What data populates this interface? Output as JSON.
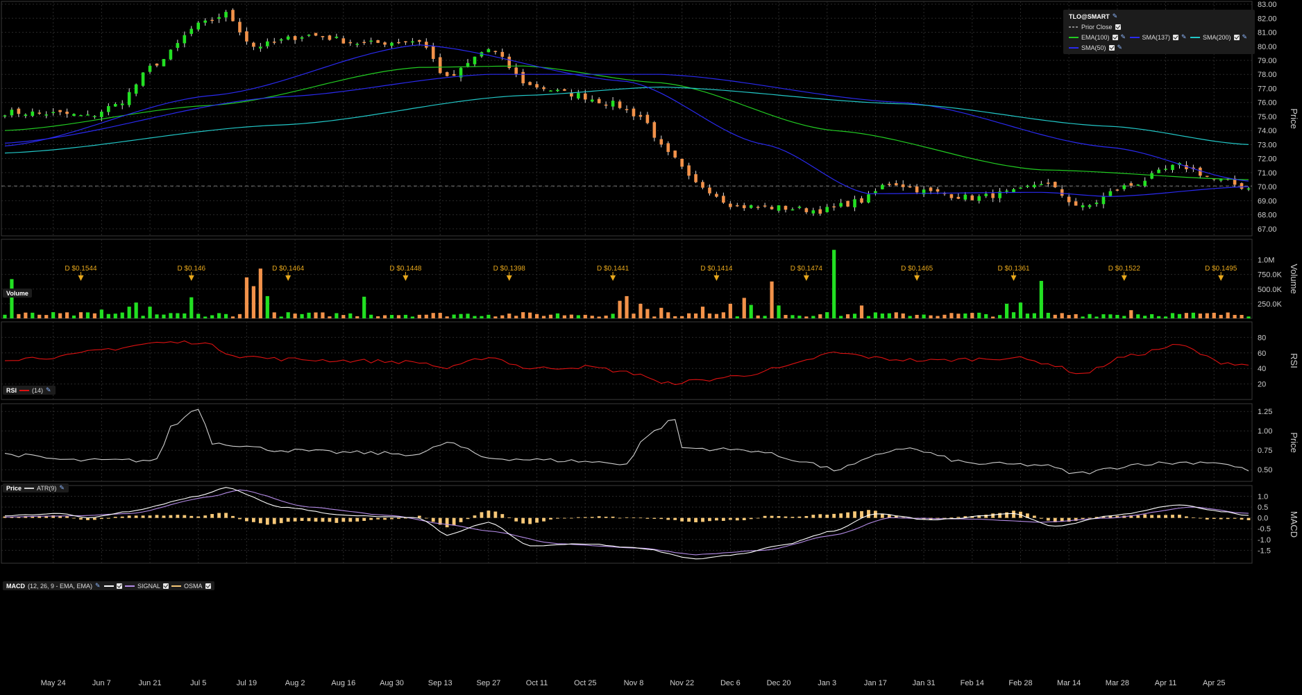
{
  "symbol": "TLO@SMART",
  "price_axis_title": "Price",
  "legend": {
    "prior_close": "Prior Close",
    "ema100": "EMA(100)",
    "sma137": "SMA(137)",
    "sma200": "SMA(200)",
    "sma50": "SMA(50)"
  },
  "panels": {
    "volume": {
      "title": "Volume",
      "axis_title": "Volume"
    },
    "rsi": {
      "title": "RSI",
      "params": "(14)",
      "axis_title": "RSI"
    },
    "atr": {
      "title": "Price",
      "params": "ATR(9)",
      "axis_title": "Price"
    },
    "macd": {
      "title": "MACD",
      "params": "(12, 26, 9 - EMA, EMA)",
      "signal": "SIGNAL",
      "osma": "OSMA",
      "axis_title": "MACD"
    }
  },
  "colors": {
    "up": "#22e022",
    "down": "#f2924a",
    "ema100": "#22cc22",
    "sma137": "#2a2af0",
    "sma200": "#22c8c8",
    "sma50": "#2a2af0",
    "rsi": "#dd1111",
    "atr": "#cfcfcf",
    "macd": "#ffffff",
    "signal": "#b58ce8",
    "osma": "#f7c878",
    "dividend": "#e8a81c"
  },
  "chart_data": [
    {
      "type": "candlestick",
      "title": "TLO@SMART",
      "ylabel": "Price",
      "ylim": [
        66.5,
        83.2
      ],
      "y_ticks": [
        "67.00",
        "68.00",
        "69.00",
        "70.00",
        "71.00",
        "72.00",
        "73.00",
        "74.00",
        "75.00",
        "76.00",
        "77.00",
        "78.00",
        "79.00",
        "80.00",
        "81.00",
        "82.00",
        "83.00"
      ],
      "x_ticks": [
        "May 24",
        "Jun 7",
        "Jun 21",
        "Jul 5",
        "Jul 19",
        "Aug 2",
        "Aug 16",
        "Aug 30",
        "Sep 13",
        "Sep 27",
        "Oct 11",
        "Oct 25",
        "Nov 8",
        "Nov 22",
        "Dec 6",
        "Dec 20",
        "Jan 3",
        "Jan 17",
        "Jan 31",
        "Feb 14",
        "Feb 28",
        "Mar 14",
        "Mar 28",
        "Apr 11",
        "Apr 25"
      ],
      "prior_close": 70.05,
      "close_anchors": [
        [
          0,
          75.3
        ],
        [
          8,
          75.2
        ],
        [
          12,
          75.0
        ],
        [
          16,
          75.8
        ],
        [
          22,
          78.8
        ],
        [
          28,
          81.5
        ],
        [
          32,
          82.3
        ],
        [
          36,
          80.0
        ],
        [
          44,
          80.8
        ],
        [
          52,
          80.2
        ],
        [
          60,
          80.4
        ],
        [
          64,
          77.7
        ],
        [
          70,
          79.8
        ],
        [
          76,
          77.2
        ],
        [
          82,
          76.6
        ],
        [
          88,
          75.9
        ],
        [
          92,
          75.0
        ],
        [
          96,
          72.3
        ],
        [
          100,
          70.2
        ],
        [
          106,
          68.6
        ],
        [
          112,
          68.5
        ],
        [
          118,
          68.3
        ],
        [
          124,
          69.0
        ],
        [
          128,
          70.3
        ],
        [
          134,
          69.6
        ],
        [
          140,
          69.2
        ],
        [
          146,
          69.6
        ],
        [
          150,
          70.3
        ],
        [
          156,
          68.5
        ],
        [
          162,
          70.0
        ],
        [
          170,
          71.5
        ],
        [
          176,
          70.4
        ],
        [
          180,
          69.9
        ]
      ],
      "moving_averages": [
        {
          "name": "EMA(100)",
          "anchors": [
            [
              0,
              74.0
            ],
            [
              30,
              75.8
            ],
            [
              60,
              78.5
            ],
            [
              75,
              78.6
            ],
            [
              95,
              77.4
            ],
            [
              120,
              74.0
            ],
            [
              150,
              71.2
            ],
            [
              180,
              70.5
            ]
          ]
        },
        {
          "name": "SMA(137)",
          "anchors": [
            [
              0,
              73.1
            ],
            [
              40,
              76.4
            ],
            [
              70,
              78.0
            ],
            [
              95,
              78.0
            ],
            [
              130,
              76.0
            ],
            [
              160,
              72.8
            ],
            [
              180,
              70.4
            ]
          ]
        },
        {
          "name": "SMA(200)",
          "anchors": [
            [
              0,
              72.4
            ],
            [
              40,
              74.4
            ],
            [
              75,
              76.5
            ],
            [
              95,
              77.1
            ],
            [
              130,
              75.9
            ],
            [
              160,
              74.3
            ],
            [
              180,
              73.0
            ]
          ]
        },
        {
          "name": "SMA(50)",
          "anchors": [
            [
              0,
              72.9
            ],
            [
              30,
              76.5
            ],
            [
              60,
              80.1
            ],
            [
              90,
              77.5
            ],
            [
              110,
              73.0
            ],
            [
              125,
              69.5
            ],
            [
              150,
              69.6
            ],
            [
              160,
              69.3
            ],
            [
              180,
              70.0
            ]
          ]
        }
      ],
      "dividends": [
        {
          "label": "D $0.1544",
          "bar": 11
        },
        {
          "label": "D $0.146",
          "bar": 27
        },
        {
          "label": "D $0.1464",
          "bar": 41
        },
        {
          "label": "D $0.1448",
          "bar": 58
        },
        {
          "label": "D $0.1398",
          "bar": 73
        },
        {
          "label": "D $0.1441",
          "bar": 88
        },
        {
          "label": "D $0.1414",
          "bar": 103
        },
        {
          "label": "D $0.1474",
          "bar": 116
        },
        {
          "label": "D $0.1465",
          "bar": 132
        },
        {
          "label": "D $0.1361",
          "bar": 146
        },
        {
          "label": "D $0.1522",
          "bar": 162
        },
        {
          "label": "D $0.1495",
          "bar": 176
        }
      ]
    },
    {
      "type": "bar",
      "title": "Volume",
      "ylabel": "Volume",
      "ylim": [
        0,
        1.35
      ],
      "y_ticks": [
        "250.0K",
        "500.0K",
        "750.0K",
        "1.0M"
      ],
      "base_level": 0.06,
      "spikes": [
        [
          1,
          0.67
        ],
        [
          14,
          0.15
        ],
        [
          18,
          0.2
        ],
        [
          19,
          0.27
        ],
        [
          21,
          0.2
        ],
        [
          27,
          0.36
        ],
        [
          35,
          0.7
        ],
        [
          36,
          0.55
        ],
        [
          37,
          0.85
        ],
        [
          38,
          0.38
        ],
        [
          52,
          0.37
        ],
        [
          89,
          0.3
        ],
        [
          90,
          0.38
        ],
        [
          92,
          0.25
        ],
        [
          93,
          0.16
        ],
        [
          95,
          0.18
        ],
        [
          101,
          0.2
        ],
        [
          105,
          0.25
        ],
        [
          107,
          0.35
        ],
        [
          108,
          0.23
        ],
        [
          111,
          0.63
        ],
        [
          112,
          0.22
        ],
        [
          120,
          1.17
        ],
        [
          124,
          0.22
        ],
        [
          145,
          0.25
        ],
        [
          147,
          0.27
        ],
        [
          150,
          0.64
        ],
        [
          163,
          0.14
        ]
      ]
    },
    {
      "type": "line",
      "title": "RSI",
      "series": [
        {
          "name": "RSI (14)",
          "anchors": [
            [
              0,
              52
            ],
            [
              8,
              55
            ],
            [
              15,
              65
            ],
            [
              22,
              73
            ],
            [
              28,
              74
            ],
            [
              34,
              56
            ],
            [
              40,
              52
            ],
            [
              50,
              50
            ],
            [
              60,
              48
            ],
            [
              64,
              40
            ],
            [
              70,
              55
            ],
            [
              76,
              40
            ],
            [
              84,
              42
            ],
            [
              92,
              33
            ],
            [
              95,
              20
            ],
            [
              100,
              24
            ],
            [
              106,
              30
            ],
            [
              112,
              40
            ],
            [
              120,
              60
            ],
            [
              128,
              52
            ],
            [
              134,
              50
            ],
            [
              140,
              52
            ],
            [
              146,
              54
            ],
            [
              150,
              48
            ],
            [
              156,
              33
            ],
            [
              162,
              55
            ],
            [
              170,
              70
            ],
            [
              176,
              48
            ],
            [
              180,
              45
            ]
          ]
        }
      ],
      "ylabel": "RSI",
      "ylim": [
        0,
        100
      ],
      "y_ticks": [
        "20",
        "40",
        "60",
        "80"
      ]
    },
    {
      "type": "line",
      "title": "ATR",
      "series": [
        {
          "name": "ATR(9)",
          "anchors": [
            [
              0,
              0.7
            ],
            [
              10,
              0.62
            ],
            [
              22,
              0.62
            ],
            [
              24,
              1.05
            ],
            [
              28,
              1.3
            ],
            [
              30,
              0.85
            ],
            [
              40,
              0.75
            ],
            [
              50,
              0.72
            ],
            [
              60,
              0.7
            ],
            [
              64,
              0.85
            ],
            [
              70,
              0.65
            ],
            [
              80,
              0.62
            ],
            [
              90,
              0.58
            ],
            [
              93,
              0.95
            ],
            [
              97,
              1.15
            ],
            [
              98,
              0.78
            ],
            [
              108,
              0.75
            ],
            [
              115,
              0.62
            ],
            [
              120,
              0.5
            ],
            [
              130,
              0.78
            ],
            [
              140,
              0.58
            ],
            [
              150,
              0.56
            ],
            [
              155,
              0.45
            ],
            [
              165,
              0.58
            ],
            [
              175,
              0.6
            ],
            [
              180,
              0.5
            ]
          ]
        }
      ],
      "ylabel": "Price",
      "ylim": [
        0.35,
        1.35
      ],
      "y_ticks": [
        "0.50",
        "0.75",
        "1.00",
        "1.25"
      ]
    },
    {
      "type": "line",
      "title": "MACD",
      "series": [
        {
          "name": "MACD",
          "anchors": [
            [
              0,
              0.1
            ],
            [
              8,
              0.2
            ],
            [
              12,
              0.0
            ],
            [
              18,
              0.3
            ],
            [
              28,
              1.0
            ],
            [
              32,
              1.4
            ],
            [
              40,
              0.5
            ],
            [
              50,
              0.1
            ],
            [
              60,
              0.0
            ],
            [
              64,
              -0.8
            ],
            [
              70,
              -0.2
            ],
            [
              76,
              -1.3
            ],
            [
              84,
              -1.2
            ],
            [
              92,
              -1.4
            ],
            [
              100,
              -1.9
            ],
            [
              106,
              -1.7
            ],
            [
              112,
              -1.3
            ],
            [
              120,
              -0.6
            ],
            [
              126,
              0.2
            ],
            [
              134,
              -0.1
            ],
            [
              146,
              0.2
            ],
            [
              152,
              -0.4
            ],
            [
              160,
              0.1
            ],
            [
              170,
              0.6
            ],
            [
              176,
              0.3
            ],
            [
              180,
              0.1
            ]
          ]
        },
        {
          "name": "SIGNAL",
          "anchors": [
            [
              0,
              0.05
            ],
            [
              10,
              0.1
            ],
            [
              18,
              0.2
            ],
            [
              30,
              1.0
            ],
            [
              34,
              1.3
            ],
            [
              44,
              0.5
            ],
            [
              56,
              0.1
            ],
            [
              64,
              -0.3
            ],
            [
              70,
              -0.6
            ],
            [
              80,
              -1.2
            ],
            [
              92,
              -1.4
            ],
            [
              100,
              -1.7
            ],
            [
              110,
              -1.5
            ],
            [
              120,
              -0.8
            ],
            [
              128,
              0.0
            ],
            [
              140,
              -0.05
            ],
            [
              150,
              -0.2
            ],
            [
              160,
              0.0
            ],
            [
              172,
              0.5
            ],
            [
              180,
              0.2
            ]
          ]
        },
        {
          "name": "OSMA",
          "bars_from": "MACD-SIGNAL"
        }
      ],
      "ylabel": "MACD",
      "ylim": [
        -2.1,
        1.5
      ],
      "y_ticks": [
        "-1.5",
        "-1.0",
        "-0.5",
        "0.0",
        "0.5",
        "1.0"
      ]
    }
  ]
}
